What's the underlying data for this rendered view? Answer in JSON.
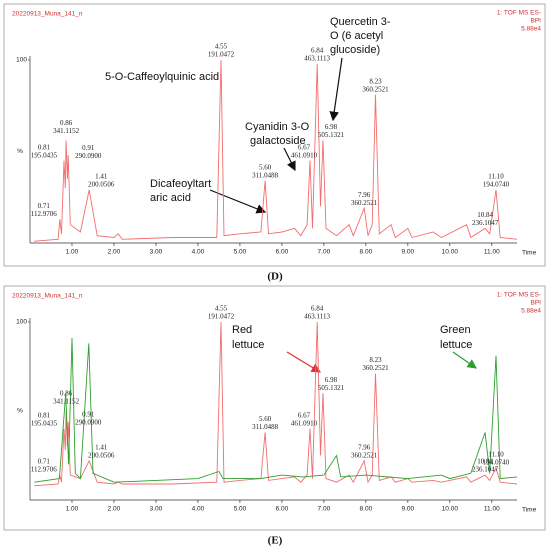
{
  "chart_data": [
    {
      "type": "line",
      "panel_label": "(D)",
      "title": "20220913_Muna_141_n",
      "header_right": [
        "1: TOF MS ES-",
        "BPI",
        "5.88e4"
      ],
      "xlabel": "Time",
      "ylabel": "%",
      "xlim": [
        0,
        11.6
      ],
      "ylim": [
        0,
        100
      ],
      "yticks": [
        100
      ],
      "xticks": [
        {
          "value": 1,
          "label": "1.00"
        },
        {
          "value": 2,
          "label": "2.00"
        },
        {
          "value": 3,
          "label": "3.00"
        },
        {
          "value": 4,
          "label": "4.00"
        },
        {
          "value": 5,
          "label": "5.00"
        },
        {
          "value": 6,
          "label": "6.00"
        },
        {
          "value": 7,
          "label": "7.00"
        },
        {
          "value": 8,
          "label": "8.00"
        },
        {
          "value": 9,
          "label": "9.00"
        },
        {
          "value": 10,
          "label": "10.00"
        },
        {
          "value": 11,
          "label": "11.00"
        }
      ],
      "series": [
        {
          "color": "#f26d6d",
          "x": [
            0.1,
            0.67,
            0.71,
            0.75,
            0.81,
            0.84,
            0.86,
            0.89,
            0.91,
            0.96,
            1.2,
            1.41,
            1.6,
            2.0,
            2.1,
            2.2,
            3.4,
            4.45,
            4.55,
            4.62,
            5.0,
            5.5,
            5.6,
            5.68,
            6.0,
            6.3,
            6.45,
            6.6,
            6.67,
            6.73,
            6.84,
            6.92,
            6.98,
            7.05,
            7.3,
            7.6,
            7.7,
            7.96,
            8.05,
            8.15,
            8.23,
            8.32,
            8.6,
            8.7,
            9.0,
            9.1,
            9.6,
            9.8,
            10.4,
            10.5,
            10.84,
            10.95,
            11.1,
            11.2,
            11.6
          ],
          "values": [
            1,
            2,
            13,
            5,
            45,
            30,
            56,
            35,
            48,
            10,
            6,
            29,
            4,
            3,
            5,
            2,
            3,
            3,
            100,
            4,
            5,
            6,
            34,
            5,
            6,
            8,
            4,
            10,
            45,
            8,
            98,
            20,
            56,
            8,
            4,
            10,
            4,
            19,
            4,
            10,
            81,
            5,
            10,
            3,
            8,
            3,
            6,
            3,
            10,
            3,
            8,
            5,
            29,
            3,
            2
          ]
        }
      ],
      "peak_labels": [
        {
          "time": 0.71,
          "mass": 112.9706
        },
        {
          "time": 0.81,
          "mass": 195.0435
        },
        {
          "time": 0.86,
          "mass": 341.1152
        },
        {
          "time": 0.91,
          "mass": {
            "value": 290.09,
            "label": "290.0900"
          }
        },
        {
          "time": 1.41,
          "mass": 200.0506
        },
        {
          "time": 4.55,
          "mass": 191.0472
        },
        {
          "time": {
            "value": 5.6,
            "label": "5.60"
          },
          "mass": 311.0488
        },
        {
          "time": 6.67,
          "mass": {
            "value": 461.091,
            "label": "461.0910"
          }
        },
        {
          "time": 6.84,
          "mass": 463.1113
        },
        {
          "time": 6.98,
          "mass": 505.1321
        },
        {
          "time": 7.96,
          "mass": 360.2521
        },
        {
          "time": 8.23,
          "mass": 360.2521
        },
        {
          "time": 10.84,
          "mass": 236.1047
        },
        {
          "time": {
            "value": 11.1,
            "label": "11.10"
          },
          "mass": {
            "value": 194.074,
            "label": "194.0740"
          }
        }
      ],
      "annotations": [
        [
          "5-O-Caffeoylquinic acid"
        ],
        [
          "Dicafeoyltart",
          "aric acid"
        ],
        [
          "Cyanidin 3-O",
          "galactoside"
        ],
        [
          "Quercetin 3-",
          "O (6 acetyl",
          "glucoside)"
        ]
      ]
    },
    {
      "type": "line",
      "panel_label": "(E)",
      "title": "20220913_Muna_141_n",
      "header_right": [
        "1: TOF MS ES-",
        "BPI",
        "5.88e4"
      ],
      "xlabel": "Time",
      "ylabel": "%",
      "xlim": [
        0,
        11.6
      ],
      "ylim": [
        0,
        100
      ],
      "yticks": [
        100
      ],
      "xticks": [
        {
          "value": 1,
          "label": "1.00"
        },
        {
          "value": 2,
          "label": "2.00"
        },
        {
          "value": 3,
          "label": "3.00"
        },
        {
          "value": 4,
          "label": "4.00"
        },
        {
          "value": 5,
          "label": "5.00"
        },
        {
          "value": 6,
          "label": "6.00"
        },
        {
          "value": 7,
          "label": "7.00"
        },
        {
          "value": 8,
          "label": "8.00"
        },
        {
          "value": 9,
          "label": "9.00"
        },
        {
          "value": 10,
          "label": "10.00"
        },
        {
          "value": 11,
          "label": "11.00"
        }
      ],
      "series": [
        {
          "color": "#f26d6d",
          "x": [
            0.1,
            0.67,
            0.71,
            0.75,
            0.81,
            0.84,
            0.86,
            0.89,
            0.91,
            0.96,
            1.2,
            1.41,
            1.6,
            2.0,
            2.1,
            2.2,
            3.4,
            4.45,
            4.55,
            4.62,
            5.0,
            5.5,
            5.6,
            5.68,
            6.0,
            6.3,
            6.45,
            6.6,
            6.67,
            6.73,
            6.84,
            6.92,
            6.98,
            7.05,
            7.3,
            7.6,
            7.7,
            7.96,
            8.05,
            8.15,
            8.23,
            8.32,
            8.6,
            8.7,
            9.0,
            9.1,
            9.6,
            9.8,
            10.4,
            10.5,
            10.84,
            10.95,
            11.1,
            11.2,
            11.6
          ],
          "values": [
            8,
            9,
            14,
            10,
            40,
            28,
            50,
            30,
            44,
            14,
            12,
            22,
            10,
            9,
            10,
            9,
            9,
            10,
            100,
            10,
            11,
            12,
            38,
            11,
            12,
            13,
            10,
            14,
            40,
            12,
            100,
            25,
            60,
            12,
            10,
            14,
            10,
            22,
            10,
            14,
            71,
            11,
            13,
            10,
            12,
            10,
            11,
            10,
            13,
            10,
            14,
            11,
            18,
            10,
            9
          ]
        },
        {
          "color": "#2e9e2e",
          "x": [
            0.1,
            0.7,
            0.85,
            0.92,
            1.0,
            1.08,
            1.2,
            1.4,
            1.5,
            2.0,
            3.0,
            4.0,
            4.5,
            4.6,
            5.5,
            6.0,
            6.5,
            7.0,
            7.3,
            7.4,
            8.0,
            9.0,
            9.8,
            10.0,
            10.5,
            10.84,
            10.95,
            11.1,
            11.2,
            11.6
          ],
          "values": [
            10,
            12,
            60,
            20,
            91,
            15,
            12,
            88,
            15,
            10,
            11,
            12,
            16,
            12,
            12,
            14,
            13,
            14,
            25,
            13,
            14,
            12,
            14,
            12,
            15,
            38,
            15,
            81,
            12,
            13
          ]
        }
      ],
      "peak_labels": [
        {
          "time": 0.71,
          "mass": 112.9706
        },
        {
          "time": 0.81,
          "mass": 195.0435
        },
        {
          "time": 0.86,
          "mass": 341.1152
        },
        {
          "time": 0.91,
          "mass": {
            "value": 290.09,
            "label": "290.0900"
          }
        },
        {
          "time": 1.41,
          "mass": 200.0506
        },
        {
          "time": 4.55,
          "mass": 191.0472
        },
        {
          "time": {
            "value": 5.6,
            "label": "5.60"
          },
          "mass": 311.0488
        },
        {
          "time": 6.67,
          "mass": {
            "value": 461.091,
            "label": "461.0910"
          }
        },
        {
          "time": 6.84,
          "mass": 463.1113
        },
        {
          "time": 6.98,
          "mass": 505.1321
        },
        {
          "time": 7.96,
          "mass": 360.2521
        },
        {
          "time": 8.23,
          "mass": 360.2521
        },
        {
          "time": 10.84,
          "mass": 236.1047
        },
        {
          "time": {
            "value": 11.1,
            "label": "11.10"
          },
          "mass": {
            "value": 194.074,
            "label": "194.0740"
          }
        }
      ],
      "annotations": [
        [
          "Red",
          "lettuce"
        ],
        [
          "Green",
          "lettuce"
        ]
      ]
    }
  ]
}
